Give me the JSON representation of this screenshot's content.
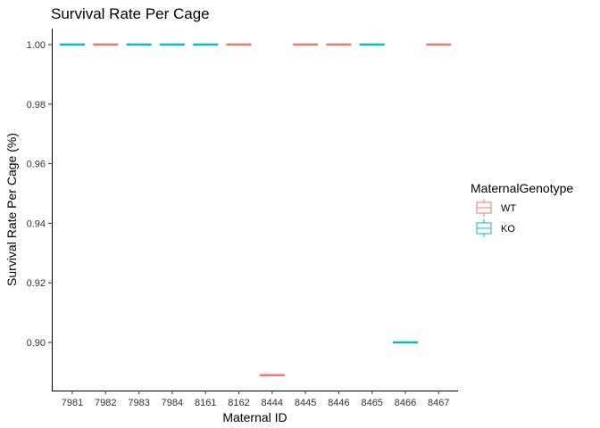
{
  "chart_data": {
    "type": "boxplot",
    "title": "Survival Rate Per Cage",
    "xlabel": "Maternal ID",
    "ylabel": "Survival Rate Per Cage (%)",
    "ylim": [
      0.885,
      1.005
    ],
    "yticks": [
      0.9,
      0.92,
      0.94,
      0.96,
      0.98,
      1.0
    ],
    "ytick_labels": [
      "0.90",
      "0.92",
      "0.94",
      "0.96",
      "0.98",
      "1.00"
    ],
    "grid": false,
    "legend": {
      "title": "MaternalGenotype",
      "placement": "right",
      "entries": [
        {
          "label": "WT",
          "color": "#F8766D"
        },
        {
          "label": "KO",
          "color": "#00BFC4"
        }
      ]
    },
    "categories": [
      "7981",
      "7982",
      "7983",
      "7984",
      "8161",
      "8162",
      "8444",
      "8445",
      "8446",
      "8465",
      "8466",
      "8467"
    ],
    "groups": [
      "KO",
      "WT",
      "KO",
      "KO",
      "KO",
      "WT",
      "WT",
      "WT",
      "WT",
      "KO",
      "KO",
      "WT"
    ],
    "values": [
      1.0,
      1.0,
      1.0,
      1.0,
      1.0,
      1.0,
      0.889,
      1.0,
      1.0,
      1.0,
      0.9,
      1.0
    ]
  }
}
